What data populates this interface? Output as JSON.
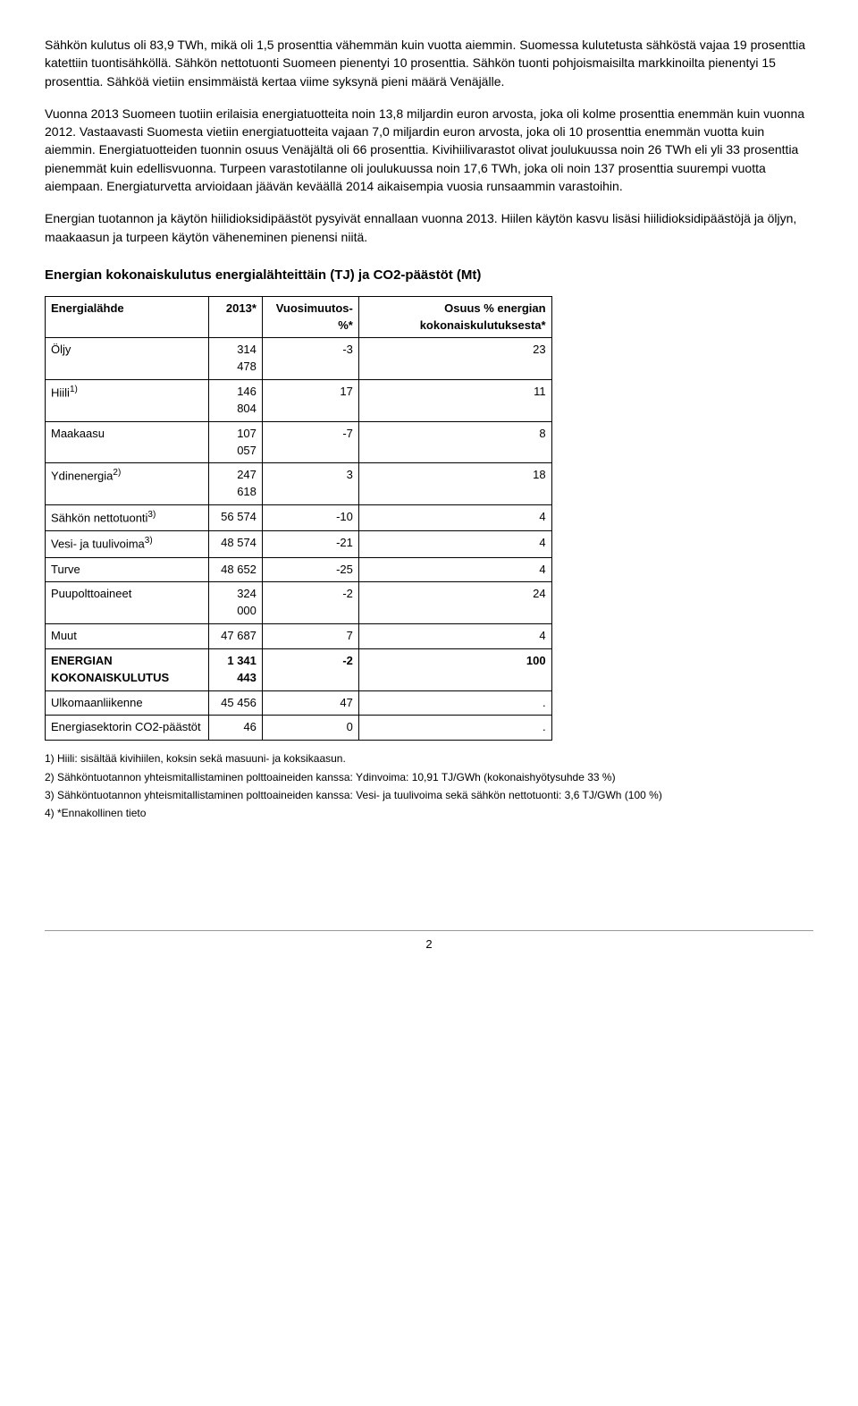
{
  "paragraphs": {
    "p1": "Sähkön kulutus oli 83,9 TWh, mikä oli 1,5 prosenttia vähemmän kuin vuotta aiemmin. Suomessa kulutetusta sähköstä vajaa 19 prosenttia katettiin tuontisähköllä. Sähkön nettotuonti Suomeen pienentyi 10 prosenttia. Sähkön tuonti pohjoismaisilta markkinoilta pienentyi 15 prosenttia. Sähköä vietiin ensimmäistä kertaa viime syksynä pieni määrä Venäjälle.",
    "p2": "Vuonna 2013 Suomeen tuotiin erilaisia energiatuotteita noin 13,8 miljardin euron arvosta, joka oli kolme prosenttia enemmän kuin vuonna 2012. Vastaavasti Suomesta vietiin energiatuotteita vajaan 7,0 miljardin euron arvosta, joka oli 10 prosenttia enemmän vuotta kuin aiemmin. Energiatuotteiden tuonnin osuus Venäjältä oli 66 prosenttia. Kivihiilivarastot olivat joulukuussa noin 26 TWh eli yli 33 prosenttia pienemmät kuin edellisvuonna. Turpeen varastotilanne oli joulukuussa noin 17,6 TWh, joka oli noin 137 prosenttia suurempi vuotta aiempaan. Energiaturvetta arvioidaan jäävän keväällä 2014 aikaisempia vuosia runsaammin varastoihin.",
    "p3": "Energian tuotannon ja käytön hiilidioksidipäästöt pysyivät ennallaan vuonna 2013. Hiilen käytön kasvu lisäsi hiilidioksidipäästöjä ja öljyn, maakaasun ja turpeen käytön väheneminen pienensi niitä."
  },
  "table": {
    "title": "Energian kokonaiskulutus energialähteittäin (TJ) ja CO2-päästöt (Mt)",
    "headers": {
      "col1": "Energialähde",
      "col2": "2013*",
      "col3": "Vuosimuutos-%*",
      "col4": "Osuus % energian kokonaiskulutuksesta*"
    },
    "rows": [
      {
        "label": "Öljy",
        "sup": "",
        "v1": "314 478",
        "v2": "-3",
        "v3": "23",
        "bold": false
      },
      {
        "label": "Hiili",
        "sup": "1)",
        "v1": "146 804",
        "v2": "17",
        "v3": "11",
        "bold": false
      },
      {
        "label": "Maakaasu",
        "sup": "",
        "v1": "107 057",
        "v2": "-7",
        "v3": "8",
        "bold": false
      },
      {
        "label": "Ydinenergia",
        "sup": "2)",
        "v1": "247 618",
        "v2": "3",
        "v3": "18",
        "bold": false
      },
      {
        "label": "Sähkön nettotuonti",
        "sup": "3)",
        "v1": "56 574",
        "v2": "-10",
        "v3": "4",
        "bold": false
      },
      {
        "label": "Vesi- ja tuulivoima",
        "sup": "3)",
        "v1": "48 574",
        "v2": "-21",
        "v3": "4",
        "bold": false
      },
      {
        "label": "Turve",
        "sup": "",
        "v1": "48 652",
        "v2": "-25",
        "v3": "4",
        "bold": false
      },
      {
        "label": "Puupolttoaineet",
        "sup": "",
        "v1": "324 000",
        "v2": "-2",
        "v3": "24",
        "bold": false
      },
      {
        "label": "Muut",
        "sup": "",
        "v1": "47 687",
        "v2": "7",
        "v3": "4",
        "bold": false
      },
      {
        "label": "ENERGIAN KOKONAISKULUTUS",
        "sup": "",
        "v1": "1 341 443",
        "v2": "-2",
        "v3": "100",
        "bold": true
      },
      {
        "label": "Ulkomaanliikenne",
        "sup": "",
        "v1": "45 456",
        "v2": "47",
        "v3": ".",
        "bold": false
      },
      {
        "label": "Energiasektorin CO2-päästöt",
        "sup": "",
        "v1": "46",
        "v2": "0",
        "v3": ".",
        "bold": false
      }
    ]
  },
  "footnotes": {
    "f1": "1) Hiili: sisältää kivihiilen, koksin sekä masuuni- ja koksikaasun.",
    "f2": "2) Sähköntuotannon yhteismitallistaminen polttoaineiden kanssa: Ydinvoima: 10,91 TJ/GWh (kokonaishyötysuhde 33 %)",
    "f3": "3) Sähköntuotannon yhteismitallistaminen polttoaineiden kanssa: Vesi- ja tuulivoima sekä sähkön nettotuonti: 3,6 TJ/GWh (100 %)",
    "f4": "4) *Ennakollinen tieto"
  },
  "pageNumber": "2"
}
